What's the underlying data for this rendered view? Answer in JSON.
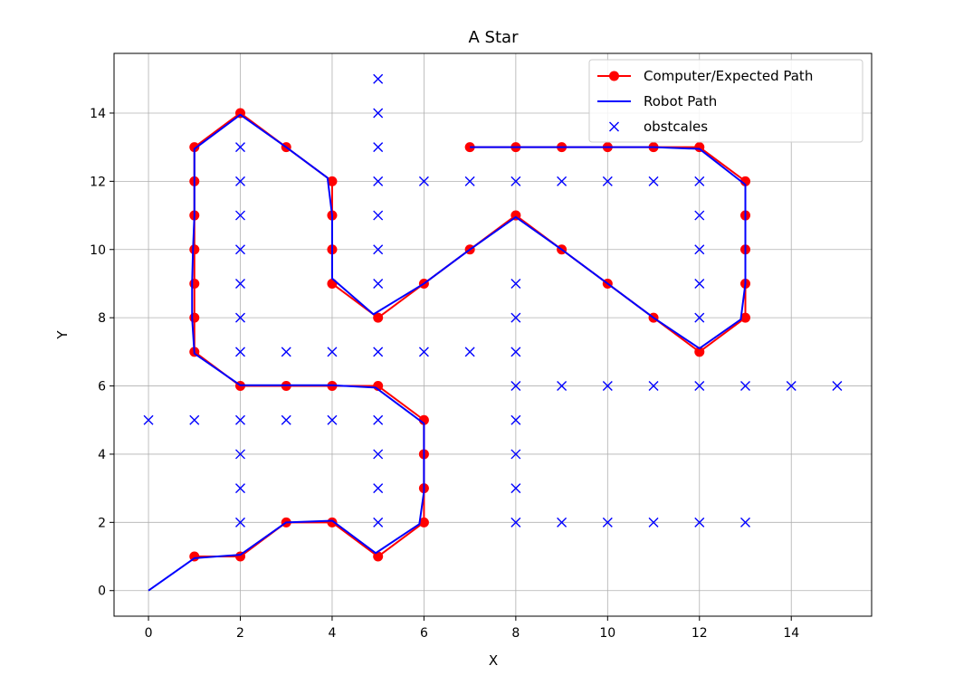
{
  "chart_data": {
    "type": "line",
    "title": "A Star",
    "xlabel": "X",
    "ylabel": "Y",
    "xlim": [
      -0.75,
      15.75
    ],
    "ylim": [
      -0.75,
      15.75
    ],
    "xticks": [
      0,
      2,
      4,
      6,
      8,
      10,
      12,
      14
    ],
    "yticks": [
      0,
      2,
      4,
      6,
      8,
      10,
      12,
      14
    ],
    "grid": true,
    "legend_position": "top-right",
    "series": [
      {
        "name": "Computer/Expected Path",
        "kind": "line-markers",
        "color": "#ff0000",
        "marker": "circle",
        "points": [
          [
            1,
            1
          ],
          [
            2,
            1
          ],
          [
            3,
            2
          ],
          [
            4,
            2
          ],
          [
            5,
            1
          ],
          [
            6,
            2
          ],
          [
            6,
            3
          ],
          [
            6,
            4
          ],
          [
            6,
            5
          ],
          [
            5,
            6
          ],
          [
            4,
            6
          ],
          [
            3,
            6
          ],
          [
            2,
            6
          ],
          [
            1,
            7
          ],
          [
            1,
            8
          ],
          [
            1,
            9
          ],
          [
            1,
            10
          ],
          [
            1,
            11
          ],
          [
            1,
            12
          ],
          [
            1,
            13
          ],
          [
            2,
            14
          ],
          [
            3,
            13
          ],
          [
            4,
            12
          ],
          [
            4,
            11
          ],
          [
            4,
            10
          ],
          [
            4,
            9
          ],
          [
            5,
            8
          ],
          [
            6,
            9
          ],
          [
            7,
            10
          ],
          [
            8,
            11
          ],
          [
            9,
            10
          ],
          [
            10,
            9
          ],
          [
            11,
            8
          ],
          [
            12,
            7
          ],
          [
            13,
            8
          ],
          [
            13,
            9
          ],
          [
            13,
            10
          ],
          [
            13,
            11
          ],
          [
            13,
            12
          ],
          [
            12,
            13
          ],
          [
            11,
            13
          ],
          [
            10,
            13
          ],
          [
            9,
            13
          ],
          [
            8,
            13
          ],
          [
            7,
            13
          ]
        ]
      },
      {
        "name": "Robot Path",
        "kind": "line",
        "color": "#0000ff",
        "points": [
          [
            0,
            0
          ],
          [
            1,
            0.95
          ],
          [
            2,
            1.05
          ],
          [
            3,
            2
          ],
          [
            4,
            2.05
          ],
          [
            4.95,
            1.1
          ],
          [
            5.9,
            1.95
          ],
          [
            6,
            2.9
          ],
          [
            6,
            3.9
          ],
          [
            6,
            4.9
          ],
          [
            4.95,
            5.95
          ],
          [
            4,
            6.02
          ],
          [
            3,
            6.02
          ],
          [
            2,
            6.02
          ],
          [
            1,
            6.95
          ],
          [
            0.95,
            8
          ],
          [
            0.95,
            9
          ],
          [
            0.97,
            10
          ],
          [
            1,
            11
          ],
          [
            1,
            12
          ],
          [
            1,
            12.95
          ],
          [
            2,
            13.95
          ],
          [
            3,
            13
          ],
          [
            3.9,
            12.1
          ],
          [
            4,
            11
          ],
          [
            4,
            10
          ],
          [
            4,
            9.15
          ],
          [
            4.9,
            8.1
          ],
          [
            6,
            9
          ],
          [
            7,
            10
          ],
          [
            8,
            10.95
          ],
          [
            9,
            10
          ],
          [
            10,
            9
          ],
          [
            11,
            8
          ],
          [
            12,
            7.1
          ],
          [
            12.9,
            7.95
          ],
          [
            13,
            9
          ],
          [
            13,
            10
          ],
          [
            13,
            11
          ],
          [
            13,
            11.9
          ],
          [
            12,
            12.95
          ],
          [
            11,
            13
          ],
          [
            10,
            13
          ],
          [
            9,
            13
          ],
          [
            8,
            13
          ],
          [
            7,
            13
          ]
        ]
      },
      {
        "name": "obstcales",
        "kind": "markers",
        "color": "#0000ff",
        "marker": "x",
        "points": [
          [
            0,
            5
          ],
          [
            1,
            5
          ],
          [
            2,
            5
          ],
          [
            2,
            2
          ],
          [
            2,
            3
          ],
          [
            2,
            4
          ],
          [
            2,
            7
          ],
          [
            2,
            8
          ],
          [
            2,
            9
          ],
          [
            2,
            10
          ],
          [
            2,
            11
          ],
          [
            2,
            12
          ],
          [
            2,
            13
          ],
          [
            3,
            5
          ],
          [
            3,
            7
          ],
          [
            4,
            5
          ],
          [
            4,
            7
          ],
          [
            5,
            2
          ],
          [
            5,
            3
          ],
          [
            5,
            4
          ],
          [
            5,
            5
          ],
          [
            5,
            7
          ],
          [
            5,
            9
          ],
          [
            5,
            10
          ],
          [
            5,
            11
          ],
          [
            5,
            12
          ],
          [
            5,
            13
          ],
          [
            5,
            14
          ],
          [
            5,
            15
          ],
          [
            6,
            7
          ],
          [
            6,
            12
          ],
          [
            7,
            7
          ],
          [
            7,
            12
          ],
          [
            8,
            2
          ],
          [
            8,
            3
          ],
          [
            8,
            4
          ],
          [
            8,
            5
          ],
          [
            8,
            6
          ],
          [
            8,
            7
          ],
          [
            8,
            8
          ],
          [
            8,
            9
          ],
          [
            8,
            12
          ],
          [
            9,
            2
          ],
          [
            9,
            6
          ],
          [
            9,
            12
          ],
          [
            10,
            2
          ],
          [
            10,
            6
          ],
          [
            10,
            12
          ],
          [
            11,
            2
          ],
          [
            11,
            6
          ],
          [
            11,
            12
          ],
          [
            12,
            2
          ],
          [
            12,
            6
          ],
          [
            12,
            8
          ],
          [
            12,
            9
          ],
          [
            12,
            10
          ],
          [
            12,
            11
          ],
          [
            12,
            12
          ],
          [
            13,
            2
          ],
          [
            13,
            6
          ],
          [
            14,
            6
          ],
          [
            15,
            6
          ]
        ]
      }
    ]
  }
}
